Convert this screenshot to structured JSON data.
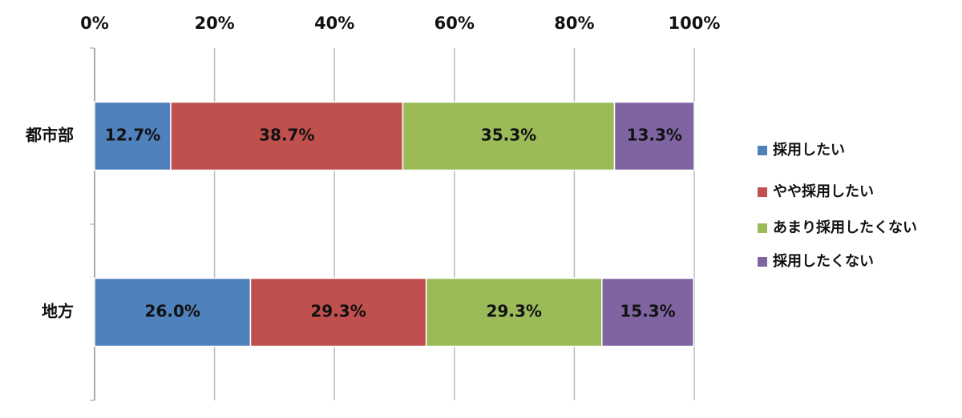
{
  "chart_data": {
    "type": "stacked-bar-horizontal",
    "categories": [
      "都市部",
      "地方"
    ],
    "series": [
      {
        "name": "採用したい",
        "color": "#4f81bd",
        "values": [
          12.7,
          26.0
        ],
        "value_labels": [
          "12.7%",
          "26.0%"
        ]
      },
      {
        "name": "やや採用したい",
        "color": "#c0504d",
        "values": [
          38.7,
          29.3
        ],
        "value_labels": [
          "38.7%",
          "29.3%"
        ]
      },
      {
        "name": "あまり採用したくない",
        "color": "#9bbb59",
        "values": [
          35.3,
          29.3
        ],
        "value_labels": [
          "35.3%",
          "29.3%"
        ]
      },
      {
        "name": "採用したくない",
        "color": "#8064a2",
        "values": [
          13.3,
          15.3
        ],
        "value_labels": [
          "13.3%",
          "15.3%"
        ]
      }
    ],
    "xlim": [
      0,
      100
    ],
    "xticks": [
      {
        "value": 0,
        "label": "0%"
      },
      {
        "value": 20,
        "label": "20%"
      },
      {
        "value": 40,
        "label": "40%"
      },
      {
        "value": 60,
        "label": "60%"
      },
      {
        "value": 80,
        "label": "80%"
      },
      {
        "value": 100,
        "label": "100%"
      }
    ],
    "grid": true,
    "legend": "right"
  }
}
